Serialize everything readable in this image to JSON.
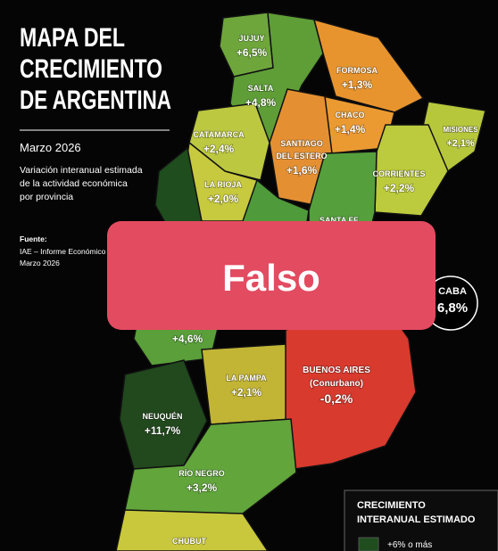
{
  "header": {
    "title": [
      "MAPA DEL",
      "CRECIMIENTO",
      "DE ARGENTINA"
    ],
    "date": "Marzo 2026",
    "description": [
      "Variación interanual estimada",
      "de la actividad económica",
      "por provincia"
    ],
    "source_label": "Fuente:",
    "source": [
      "IAE – Informe Económico M",
      "Marzo 2026"
    ]
  },
  "provinces": [
    {
      "name": [
        "JUJUY"
      ],
      "value": "+6,5%"
    },
    {
      "name": [
        "SALTA"
      ],
      "value": "+4,8%"
    },
    {
      "name": [
        "FORMOSA"
      ],
      "value": "+1,3%"
    },
    {
      "name": [
        "CHACO"
      ],
      "value": "+1,4%"
    },
    {
      "name": [
        "MISIONES"
      ],
      "value": "+2,1%"
    },
    {
      "name": [
        "CATAMARCA"
      ],
      "value": "+2,4%"
    },
    {
      "name": [
        "SANTIAGO",
        "DEL ESTERO"
      ],
      "value": "+1,6%"
    },
    {
      "name": [
        "CORRIENTES"
      ],
      "value": "+2,2%"
    },
    {
      "name": [
        "LA RIOJA"
      ],
      "value": "+2,0%"
    },
    {
      "name": [
        "SANTA FE"
      ]
    },
    {
      "value": "+4,6%"
    },
    {
      "name": [
        "LA PAMPA"
      ],
      "value": "+2,1%"
    },
    {
      "name": [
        "BUENOS AIRES",
        "(Conurbano)"
      ],
      "value": "-0,2%"
    },
    {
      "name": [
        "NEUQUÉN"
      ],
      "value": "+11,7%"
    },
    {
      "name": [
        "RÍO NEGRO"
      ],
      "value": "+3,2%"
    },
    {
      "name": [
        "CHUBUT"
      ]
    },
    {
      "name": [
        "CABA"
      ],
      "value": "6,8%"
    }
  ],
  "legend": {
    "title": [
      "CRECIMIENTO",
      "INTERANUAL ESTIMADO"
    ],
    "items": [
      "+6% o más"
    ]
  },
  "overlay": {
    "label": "Falso"
  }
}
